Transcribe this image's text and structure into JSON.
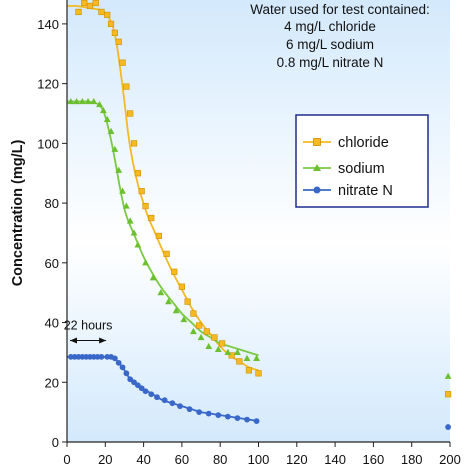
{
  "chart_data": {
    "type": "scatter",
    "ylabel": "Concentration (mg/L)",
    "xlabel": "",
    "xlim": [
      0,
      200
    ],
    "ylim": [
      0,
      148
    ],
    "xticks": [
      0,
      20,
      40,
      60,
      80,
      100,
      120,
      140,
      160,
      180,
      200
    ],
    "yticks": [
      0,
      20,
      40,
      60,
      80,
      100,
      120,
      140
    ],
    "grid": false,
    "legend_position": "right-middle",
    "note": {
      "lines": [
        "Water used for test contained:",
        "4 mg/L chloride",
        "6 mg/L sodium",
        "0.8 mg/L nitrate N"
      ]
    },
    "annotation": {
      "text": "22 hours",
      "x_start": 0,
      "x_end": 22,
      "y": 34
    },
    "series": [
      {
        "name": "chloride",
        "color": "#f5b921",
        "marker": "square",
        "points": [
          [
            6,
            144
          ],
          [
            9,
            147
          ],
          [
            12,
            146
          ],
          [
            15,
            147
          ],
          [
            18,
            144
          ],
          [
            21,
            143
          ],
          [
            23,
            140
          ],
          [
            25,
            137
          ],
          [
            27,
            134
          ],
          [
            29,
            127
          ],
          [
            31,
            119
          ],
          [
            33,
            110
          ],
          [
            35,
            100
          ],
          [
            37,
            90
          ],
          [
            39,
            84
          ],
          [
            41,
            79
          ],
          [
            44,
            75
          ],
          [
            48,
            69
          ],
          [
            52,
            63
          ],
          [
            56,
            57
          ],
          [
            60,
            52
          ],
          [
            63,
            47
          ],
          [
            66,
            43
          ],
          [
            69,
            39
          ],
          [
            73,
            37
          ],
          [
            77,
            35
          ],
          [
            81,
            33
          ],
          [
            86,
            29
          ],
          [
            90,
            27
          ],
          [
            95,
            24
          ],
          [
            100,
            23
          ],
          [
            199,
            16
          ]
        ],
        "curve": [
          [
            0,
            146
          ],
          [
            5,
            146
          ],
          [
            10,
            145.5
          ],
          [
            15,
            145
          ],
          [
            18,
            144.5
          ],
          [
            21,
            143
          ],
          [
            24,
            139
          ],
          [
            26,
            133
          ],
          [
            28,
            124
          ],
          [
            30,
            114
          ],
          [
            32,
            103
          ],
          [
            34,
            95
          ],
          [
            36,
            89
          ],
          [
            38,
            84
          ],
          [
            42,
            76
          ],
          [
            46,
            70
          ],
          [
            50,
            64
          ],
          [
            55,
            57
          ],
          [
            60,
            51
          ],
          [
            65,
            45
          ],
          [
            70,
            40
          ],
          [
            75,
            36
          ],
          [
            80,
            32
          ],
          [
            85,
            29
          ],
          [
            90,
            27
          ],
          [
            95,
            25
          ],
          [
            100,
            24
          ]
        ]
      },
      {
        "name": "sodium",
        "color": "#7ac943",
        "marker": "triangle",
        "points": [
          [
            2,
            114
          ],
          [
            5,
            114
          ],
          [
            8,
            114
          ],
          [
            11,
            114
          ],
          [
            14,
            114
          ],
          [
            17,
            113
          ],
          [
            19,
            111
          ],
          [
            21,
            108
          ],
          [
            23,
            104
          ],
          [
            25,
            98
          ],
          [
            27,
            91
          ],
          [
            29,
            84
          ],
          [
            31,
            79
          ],
          [
            33,
            74
          ],
          [
            35,
            70
          ],
          [
            37,
            66
          ],
          [
            41,
            60
          ],
          [
            45,
            55
          ],
          [
            49,
            50
          ],
          [
            53,
            47
          ],
          [
            57,
            44
          ],
          [
            61,
            41
          ],
          [
            66,
            37
          ],
          [
            70,
            35
          ],
          [
            74,
            32
          ],
          [
            79,
            31
          ],
          [
            84,
            30
          ],
          [
            89,
            30
          ],
          [
            94,
            28
          ],
          [
            99,
            28
          ],
          [
            199,
            22
          ]
        ],
        "curve": [
          [
            0,
            114
          ],
          [
            5,
            114
          ],
          [
            10,
            114
          ],
          [
            15,
            113.5
          ],
          [
            18,
            112
          ],
          [
            20,
            109
          ],
          [
            22,
            104
          ],
          [
            24,
            98
          ],
          [
            26,
            91
          ],
          [
            28,
            84
          ],
          [
            30,
            78
          ],
          [
            32,
            74
          ],
          [
            34,
            71
          ],
          [
            36,
            68
          ],
          [
            40,
            62
          ],
          [
            45,
            56
          ],
          [
            50,
            51
          ],
          [
            55,
            47
          ],
          [
            60,
            43
          ],
          [
            65,
            40
          ],
          [
            70,
            37
          ],
          [
            75,
            35
          ],
          [
            80,
            33
          ],
          [
            85,
            32
          ],
          [
            90,
            31
          ],
          [
            95,
            30
          ],
          [
            100,
            29
          ]
        ]
      },
      {
        "name": "nitrate N",
        "color": "#3a68c9",
        "marker": "circle",
        "points": [
          [
            2,
            28.5
          ],
          [
            4,
            28.5
          ],
          [
            6,
            28.5
          ],
          [
            8,
            28.5
          ],
          [
            10,
            28.5
          ],
          [
            12,
            28.5
          ],
          [
            14,
            28.5
          ],
          [
            16,
            28.5
          ],
          [
            18,
            28.5
          ],
          [
            21,
            28.5
          ],
          [
            23,
            28.5
          ],
          [
            25,
            28
          ],
          [
            27,
            26.5
          ],
          [
            29,
            25
          ],
          [
            31,
            23
          ],
          [
            33,
            21
          ],
          [
            35,
            20
          ],
          [
            37,
            19
          ],
          [
            39,
            18
          ],
          [
            41,
            17
          ],
          [
            44,
            16
          ],
          [
            47,
            15
          ],
          [
            51,
            14
          ],
          [
            55,
            13
          ],
          [
            59,
            12
          ],
          [
            64,
            11
          ],
          [
            69,
            10
          ],
          [
            74,
            9.5
          ],
          [
            79,
            9
          ],
          [
            84,
            8.5
          ],
          [
            89,
            8
          ],
          [
            94,
            7.5
          ],
          [
            99,
            7
          ],
          [
            199,
            5
          ]
        ],
        "curve": [
          [
            0,
            28.5
          ],
          [
            5,
            28.5
          ],
          [
            10,
            28.5
          ],
          [
            15,
            28.5
          ],
          [
            20,
            28.5
          ],
          [
            23,
            28.5
          ],
          [
            25,
            28
          ],
          [
            27,
            26.5
          ],
          [
            29,
            25
          ],
          [
            31,
            23
          ],
          [
            33,
            21
          ],
          [
            35,
            20
          ],
          [
            38,
            18.5
          ],
          [
            42,
            17
          ],
          [
            46,
            15.5
          ],
          [
            50,
            14
          ],
          [
            55,
            13
          ],
          [
            60,
            12
          ],
          [
            65,
            11
          ],
          [
            70,
            10
          ],
          [
            75,
            9.5
          ],
          [
            80,
            9
          ],
          [
            85,
            8.5
          ],
          [
            90,
            8
          ],
          [
            95,
            7.5
          ],
          [
            100,
            7
          ]
        ]
      }
    ]
  }
}
